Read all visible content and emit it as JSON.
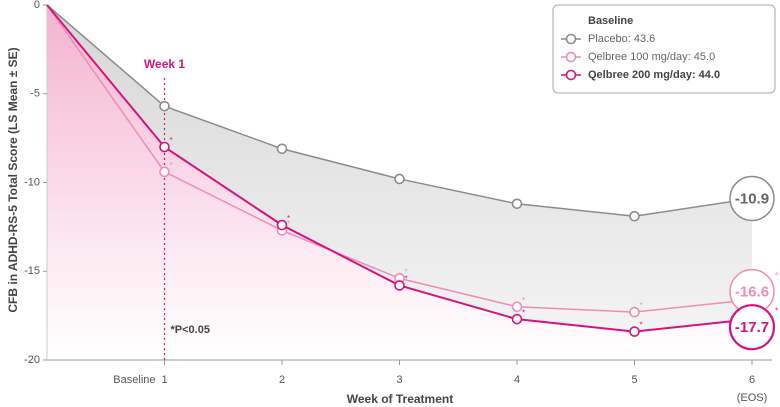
{
  "chart_data": {
    "type": "line",
    "categories": [
      "Baseline",
      "1",
      "2",
      "3",
      "4",
      "5",
      "6"
    ],
    "series": [
      {
        "name": "Placebo: 43.6",
        "color": "#8c8c8c",
        "values": [
          0,
          -5.7,
          -8.1,
          -9.8,
          -11.2,
          -11.9,
          -10.9
        ],
        "significant": [
          false,
          false,
          false,
          false,
          false,
          false,
          false
        ]
      },
      {
        "name": "Qelbree 100 mg/day: 45.0",
        "color": "#f08cb4",
        "values": [
          0,
          -9.4,
          -12.7,
          -15.4,
          -17.0,
          -17.3,
          -16.6
        ],
        "significant": [
          false,
          true,
          true,
          true,
          true,
          true,
          true
        ]
      },
      {
        "name": "Qelbree 200 mg/day: 44.0",
        "color": "#d6137e",
        "values": [
          0,
          -8.0,
          -12.4,
          -15.8,
          -17.7,
          -18.4,
          -17.7
        ],
        "significant": [
          false,
          true,
          true,
          true,
          true,
          true,
          true
        ]
      }
    ],
    "ylim": [
      -20,
      0
    ],
    "yticks": [
      0,
      -5,
      -10,
      -15,
      -20
    ],
    "y_label": "CFB in ADHD-RS-5 Total Score (LS Mean ± SE)",
    "x_label": "Week of Treatment",
    "x_note": "(EOS)",
    "legend_title": "Baseline",
    "legend_position": "upper right",
    "highlight_category": "1",
    "highlight_label": "Week 1",
    "highlight_color": "#d6137e",
    "significance_marker": "*",
    "footnote": "*P<0.05"
  }
}
